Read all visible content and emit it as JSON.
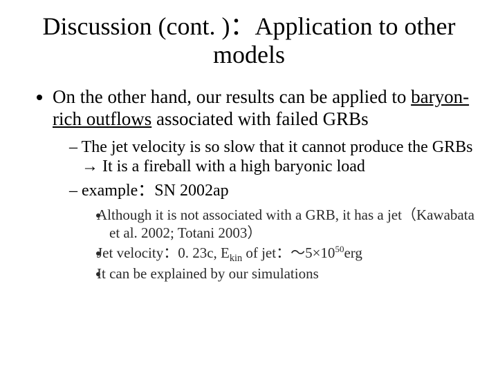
{
  "colors": {
    "background": "#ffffff",
    "text": "#000000",
    "sub_bullet_text": "#2a2a2a"
  },
  "fonts": {
    "family": "Times New Roman",
    "title_size_pt": 36,
    "body_size_pt": 27,
    "level2_size_pt": 24,
    "level3_size_pt": 21
  },
  "title": "Discussion (cont. )：Application to other models",
  "l1_pre": "On the other hand, our results can be applied to ",
  "l1_underlined": "baryon-rich outflows",
  "l1_post": " associated with failed GRBs",
  "l2a": "The jet velocity is so slow that it cannot produce the GRBs → It is a fireball with a high baryonic load",
  "l2b": "example：SN 2002ap",
  "l3a": "Although it is not associated with a GRB, it has a jet（Kawabata et al. 2002; Totani 2003）",
  "l3b_pre": "Jet velocity：0. 23c, E",
  "l3b_sub": "kin",
  "l3b_mid": " of jet：〜5×10",
  "l3b_sup": "50",
  "l3b_post": "erg",
  "l3c": "It can be explained by our simulations"
}
